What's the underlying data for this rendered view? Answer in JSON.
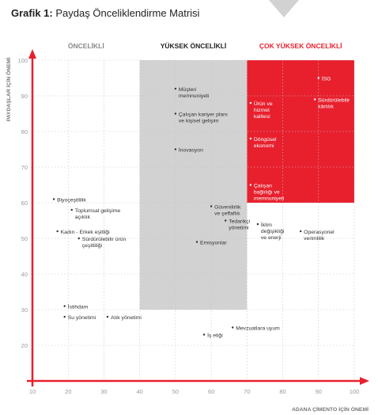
{
  "header": {
    "title_bold": "Grafik 1:",
    "title_rest": "Paydaş Önceliklendirme Matrisi"
  },
  "chart_data": {
    "type": "scatter",
    "ylabel": "PAYDAŞLAR İÇİN ÖNEMİ",
    "xlabel": "ADANA ÇİMENTO İÇİN ÖNEMİ",
    "xlim": [
      10,
      100
    ],
    "ylim": [
      10,
      100
    ],
    "xticks": [
      10,
      20,
      30,
      40,
      50,
      60,
      70,
      80,
      90,
      100
    ],
    "yticks": [
      20,
      30,
      40,
      50,
      60,
      70,
      80,
      90,
      100
    ],
    "grid": true,
    "zones": [
      {
        "label": "ÖNCELİKLİ",
        "x_range": [
          10,
          40
        ],
        "color": "#888888",
        "fill": "none"
      },
      {
        "label": "YÜKSEK ÖNCELİKLİ",
        "x_range": [
          40,
          70
        ],
        "y_range": [
          30,
          100
        ],
        "color": "#222222",
        "fill": "#d2d2d2"
      },
      {
        "label": "ÇOK YÜKSEK ÖNCELİKLİ",
        "x_range": [
          70,
          100
        ],
        "y_range": [
          60,
          100
        ],
        "color": "#e8202e",
        "fill": "#e8202e"
      }
    ],
    "points": [
      {
        "lines": [
          "İSG"
        ],
        "x": 90,
        "y": 95,
        "zone": "red"
      },
      {
        "lines": [
          "Sürdürülebilir",
          "kârlılık"
        ],
        "x": 89,
        "y": 89,
        "zone": "red"
      },
      {
        "lines": [
          "Ürün ve",
          "hizmet",
          "kalitesi"
        ],
        "x": 71,
        "y": 88,
        "zone": "red"
      },
      {
        "lines": [
          "Döngüsel",
          "ekonomi"
        ],
        "x": 71,
        "y": 78,
        "zone": "red"
      },
      {
        "lines": [
          "Çalışan",
          "bağlılığı ve",
          "memnuniyeti"
        ],
        "x": 71,
        "y": 65,
        "zone": "red"
      },
      {
        "lines": [
          "Müşteri",
          "memnuniyeti"
        ],
        "x": 50,
        "y": 92,
        "zone": "gray"
      },
      {
        "lines": [
          "Çalışan kariyer planı",
          "ve kişisel gelişim"
        ],
        "x": 50,
        "y": 85,
        "zone": "gray"
      },
      {
        "lines": [
          "İnovasyon"
        ],
        "x": 50,
        "y": 75,
        "zone": "gray"
      },
      {
        "lines": [
          "Güvenilirlik",
          "ve şeffaflık"
        ],
        "x": 60,
        "y": 59,
        "zone": "gray"
      },
      {
        "lines": [
          "Tedarikçi",
          "yönetimi"
        ],
        "x": 64,
        "y": 55,
        "zone": "gray"
      },
      {
        "lines": [
          "Emisyonlar"
        ],
        "x": 56,
        "y": 49,
        "zone": "gray"
      },
      {
        "lines": [
          "İklim",
          "değişikliği",
          "ve enerji"
        ],
        "x": 73,
        "y": 54,
        "zone": "white"
      },
      {
        "lines": [
          "Operasyonel",
          "verimlilik"
        ],
        "x": 85,
        "y": 52,
        "zone": "white"
      },
      {
        "lines": [
          "Biyoçeşitlilik"
        ],
        "x": 16,
        "y": 61,
        "zone": "white"
      },
      {
        "lines": [
          "Toplumsal gelişime",
          "açıklık"
        ],
        "x": 21,
        "y": 58,
        "zone": "white"
      },
      {
        "lines": [
          "Kadın - Erkek eşitliği"
        ],
        "x": 17,
        "y": 52,
        "zone": "white"
      },
      {
        "lines": [
          "Sürdürülebilir ürün",
          "çeşitliliği"
        ],
        "x": 23,
        "y": 50,
        "zone": "white"
      },
      {
        "lines": [
          "İstihdam"
        ],
        "x": 19,
        "y": 31,
        "zone": "white"
      },
      {
        "lines": [
          "Su yönetimi"
        ],
        "x": 19,
        "y": 28,
        "zone": "white"
      },
      {
        "lines": [
          "Atık yönetimi"
        ],
        "x": 31,
        "y": 28,
        "zone": "white"
      },
      {
        "lines": [
          "Mevzuatlara uyum"
        ],
        "x": 66,
        "y": 25,
        "zone": "white"
      },
      {
        "lines": [
          "İş etiği"
        ],
        "x": 58,
        "y": 23,
        "zone": "white"
      }
    ]
  }
}
